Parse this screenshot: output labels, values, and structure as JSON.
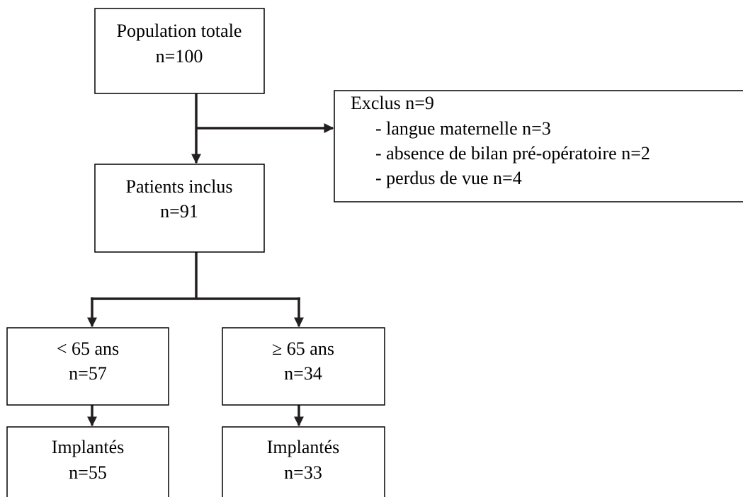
{
  "nodes": [
    {
      "lines": [
        "Population totale",
        "n=100"
      ]
    },
    {
      "lines": [
        "Patients inclus",
        "n=91"
      ]
    },
    {
      "lines": [
        "< 65 ans",
        "n=57"
      ]
    },
    {
      "lines": [
        "≥ 65 ans",
        "n=34"
      ]
    },
    {
      "lines": [
        "Implantés",
        "n=55"
      ]
    },
    {
      "lines": [
        "Implantés",
        "n=33"
      ]
    }
  ],
  "excluded": {
    "title": "Exclus n=9",
    "items": [
      "- langue maternelle n=3",
      "- absence de bilan pré-opératoire n=2",
      "- perdus de vue n=4"
    ]
  }
}
